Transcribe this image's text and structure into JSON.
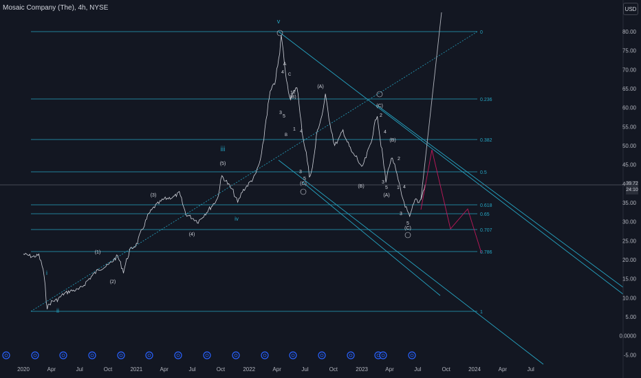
{
  "header": {
    "title": "Mosaic Company (The), 4h, NYSE",
    "currency": "USD"
  },
  "price_tag": {
    "line1": "39.72",
    "line2": "24:10"
  },
  "chart_data": {
    "type": "line",
    "title": "Mosaic Company (The), 4h, NYSE",
    "xlabel": "",
    "ylabel": "",
    "y_ticks": [
      "80.00",
      "75.00",
      "70.00",
      "65.00",
      "60.00",
      "55.00",
      "50.00",
      "45.00",
      "40.00",
      "35.00",
      "30.00",
      "25.00",
      "20.00",
      "15.00",
      "10.00",
      "5.00",
      "0.0000",
      "-5.00"
    ],
    "x_ticks": [
      "2020",
      "Apr",
      "Jul",
      "Oct",
      "2021",
      "Apr",
      "Jul",
      "Oct",
      "2022",
      "Apr",
      "Jul",
      "Oct",
      "2023",
      "Apr",
      "Jul",
      "Oct",
      "2024",
      "Apr",
      "Jul"
    ],
    "ylim": [
      -6.5,
      84
    ],
    "grid": false,
    "series": [
      {
        "values": [
          [
            "2020-01-01",
            21.5
          ],
          [
            "2020-02-01",
            20.8
          ],
          [
            "2020-02-20",
            21.2
          ],
          [
            "2020-03-05",
            17.5
          ],
          [
            "2020-03-18",
            7.5
          ],
          [
            "2020-04-01",
            9.0
          ],
          [
            "2020-04-20",
            9.5
          ],
          [
            "2020-05-10",
            11.0
          ],
          [
            "2020-06-01",
            11.8
          ],
          [
            "2020-07-01",
            12.2
          ],
          [
            "2020-08-01",
            15.0
          ],
          [
            "2020-09-01",
            17.5
          ],
          [
            "2020-10-01",
            18.5
          ],
          [
            "2020-11-01",
            21.0
          ],
          [
            "2020-11-20",
            17.0
          ],
          [
            "2020-12-10",
            22.5
          ],
          [
            "2021-01-01",
            24.0
          ],
          [
            "2021-01-20",
            28.0
          ],
          [
            "2021-02-10",
            32.0
          ],
          [
            "2021-03-01",
            34.0
          ],
          [
            "2021-04-01",
            36.0
          ],
          [
            "2021-05-01",
            36.5
          ],
          [
            "2021-05-20",
            37.5
          ],
          [
            "2021-06-10",
            32.0
          ],
          [
            "2021-07-01",
            31.0
          ],
          [
            "2021-07-20",
            30.0
          ],
          [
            "2021-08-10",
            32.0
          ],
          [
            "2021-09-01",
            34.0
          ],
          [
            "2021-09-20",
            36.0
          ],
          [
            "2021-10-05",
            42.0
          ],
          [
            "2021-10-20",
            40.5
          ],
          [
            "2021-11-10",
            38.0
          ],
          [
            "2021-11-25",
            35.0
          ],
          [
            "2021-12-10",
            38.0
          ],
          [
            "2021-12-31",
            40.0
          ],
          [
            "2022-01-20",
            42.0
          ],
          [
            "2022-02-10",
            47.0
          ],
          [
            "2022-02-25",
            57.0
          ],
          [
            "2022-03-10",
            64.0
          ],
          [
            "2022-03-25",
            66.5
          ],
          [
            "2022-04-10",
            74.0
          ],
          [
            "2022-04-15",
            79.5
          ],
          [
            "2022-04-25",
            72.0
          ],
          [
            "2022-05-05",
            66.0
          ],
          [
            "2022-05-15",
            62.0
          ],
          [
            "2022-05-25",
            64.0
          ],
          [
            "2022-06-05",
            66.0
          ],
          [
            "2022-06-15",
            58.0
          ],
          [
            "2022-06-25",
            52.0
          ],
          [
            "2022-07-05",
            48.0
          ],
          [
            "2022-07-15",
            42.0
          ],
          [
            "2022-07-25",
            44.0
          ],
          [
            "2022-08-10",
            54.0
          ],
          [
            "2022-08-25",
            58.0
          ],
          [
            "2022-09-05",
            63.0
          ],
          [
            "2022-09-20",
            56.0
          ],
          [
            "2022-10-05",
            50.0
          ],
          [
            "2022-10-20",
            52.0
          ],
          [
            "2022-11-01",
            54.0
          ],
          [
            "2022-11-15",
            51.0
          ],
          [
            "2022-12-01",
            48.0
          ],
          [
            "2022-12-15",
            47.0
          ],
          [
            "2022-12-31",
            44.0
          ],
          [
            "2023-01-15",
            47.0
          ],
          [
            "2023-01-31",
            51.0
          ],
          [
            "2023-02-10",
            55.0
          ],
          [
            "2023-02-20",
            58.5
          ],
          [
            "2023-03-01",
            52.0
          ],
          [
            "2023-03-10",
            47.0
          ],
          [
            "2023-03-20",
            40.5
          ],
          [
            "2023-03-31",
            45.0
          ],
          [
            "2023-04-10",
            47.0
          ],
          [
            "2023-04-25",
            42.0
          ],
          [
            "2023-05-10",
            37.0
          ],
          [
            "2023-05-25",
            33.5
          ],
          [
            "2023-06-05",
            31.0
          ],
          [
            "2023-06-15",
            34.0
          ],
          [
            "2023-06-25",
            36.0
          ],
          [
            "2023-07-05",
            35.0
          ],
          [
            "2023-07-15",
            37.0
          ],
          [
            "2023-07-25",
            39.7
          ]
        ]
      }
    ],
    "annotations": {
      "fib_levels": [
        "0",
        "0.236",
        "0.382",
        "0.5",
        "0.618",
        "0.65",
        "0.707",
        "0.786",
        "1"
      ],
      "wave_labels": [
        "v",
        "iii",
        "iv",
        "ii",
        "i",
        "(1)",
        "(2)",
        "(3)",
        "(4)",
        "(5)",
        "(A)",
        "(B)",
        "(C)",
        "A",
        "B",
        "C",
        "1",
        "2",
        "3",
        "4",
        "5"
      ]
    }
  }
}
